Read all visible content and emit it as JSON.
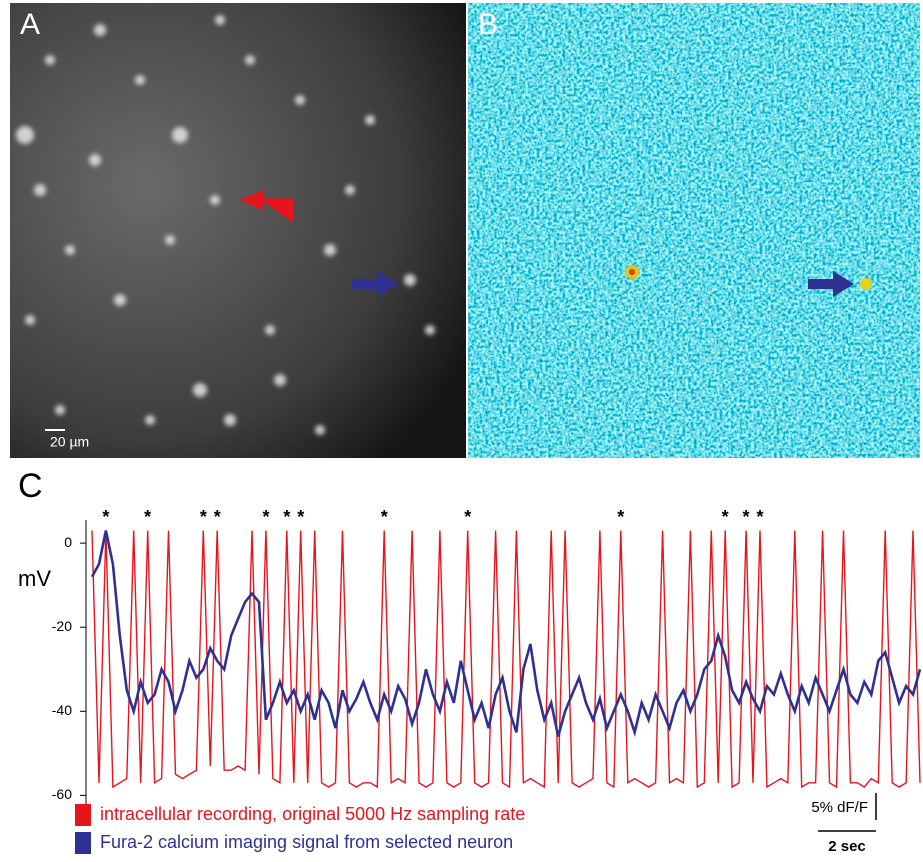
{
  "panel_a": {
    "label": "A",
    "scale": "20 µm"
  },
  "panel_b": {
    "label": "B"
  },
  "chart_data": {
    "type": "line",
    "panel_label": "C",
    "ylabel": "mV",
    "ylim": [
      -63,
      5.5
    ],
    "yticks": [
      0,
      -20,
      -40,
      -60
    ],
    "series": [
      {
        "name": "intracellular recording, original 5000 Hz sampling rate",
        "color": "#e8141c",
        "values": [
          3,
          -57,
          3,
          -58,
          -57,
          -56,
          3,
          -57,
          3,
          -57,
          -56,
          3,
          -55,
          -56,
          -55,
          -54,
          3,
          -53,
          3,
          -54,
          -54,
          -53,
          -54,
          3,
          -55,
          3,
          -56,
          -57,
          3,
          -57,
          3,
          -57,
          3,
          -57,
          -58,
          -57,
          3,
          -57,
          -58,
          -57,
          -57,
          -58,
          3,
          -57,
          -56,
          -57,
          3,
          -57,
          -58,
          -57,
          3,
          -57,
          -58,
          -57,
          3,
          -57,
          -58,
          -57,
          3,
          -57,
          -58,
          3,
          -57,
          -56,
          -57,
          -58,
          3,
          -57,
          3,
          -57,
          -58,
          -57,
          -56,
          3,
          -57,
          -58,
          3,
          -57,
          -56,
          -57,
          -58,
          -57,
          3,
          -57,
          -56,
          -57,
          3,
          -58,
          -57,
          3,
          -57,
          3,
          -58,
          -57,
          3,
          -57,
          3,
          -58,
          -57,
          -56,
          -57,
          3,
          -58,
          -57,
          -57,
          3,
          -57,
          -58,
          3,
          -57,
          -57,
          -58,
          -56,
          -57,
          3,
          -57,
          -58,
          -57,
          3,
          -57
        ]
      },
      {
        "name": "Fura-2 calcium imaging signal from selected neuron",
        "color": "#2e3192",
        "values": [
          -8,
          -5,
          3,
          -5,
          -22,
          -35,
          -40,
          -33,
          -38,
          -36,
          -30,
          -33,
          -40,
          -35,
          -28,
          -32,
          -30,
          -25,
          -28,
          -30,
          -22,
          -18,
          -14,
          -12,
          -14,
          -42,
          -38,
          -33,
          -38,
          -35,
          -40,
          -36,
          -42,
          -35,
          -38,
          -44,
          -35,
          -40,
          -37,
          -33,
          -38,
          -42,
          -36,
          -40,
          -34,
          -37,
          -43,
          -38,
          -30,
          -36,
          -40,
          -33,
          -38,
          -28,
          -35,
          -42,
          -38,
          -44,
          -36,
          -32,
          -40,
          -45,
          -30,
          -24,
          -35,
          -42,
          -38,
          -46,
          -40,
          -36,
          -32,
          -38,
          -42,
          -37,
          -44,
          -40,
          -36,
          -40,
          -45,
          -38,
          -42,
          -36,
          -40,
          -44,
          -38,
          -35,
          -40,
          -36,
          -30,
          -28,
          -22,
          -27,
          -35,
          -38,
          -33,
          -37,
          -40,
          -34,
          -36,
          -31,
          -36,
          -40,
          -34,
          -38,
          -32,
          -36,
          -40,
          -35,
          -30,
          -36,
          -38,
          -33,
          -36,
          -28,
          -26,
          -32,
          -38,
          -34,
          -36,
          -30
        ]
      }
    ],
    "annotations": [
      {
        "text": "*",
        "x": 2
      },
      {
        "text": "*",
        "x": 8
      },
      {
        "text": "*",
        "x": 16
      },
      {
        "text": "*",
        "x": 18
      },
      {
        "text": "*",
        "x": 25
      },
      {
        "text": "*",
        "x": 28
      },
      {
        "text": "*",
        "x": 30
      },
      {
        "text": "*",
        "x": 42
      },
      {
        "text": "*",
        "x": 54
      },
      {
        "text": "*",
        "x": 76
      },
      {
        "text": "*",
        "x": 91
      },
      {
        "text": "*",
        "x": 94
      },
      {
        "text": "*",
        "x": 96
      }
    ],
    "scalebar_y": "5% dF/F",
    "scalebar_x": "2 sec"
  }
}
